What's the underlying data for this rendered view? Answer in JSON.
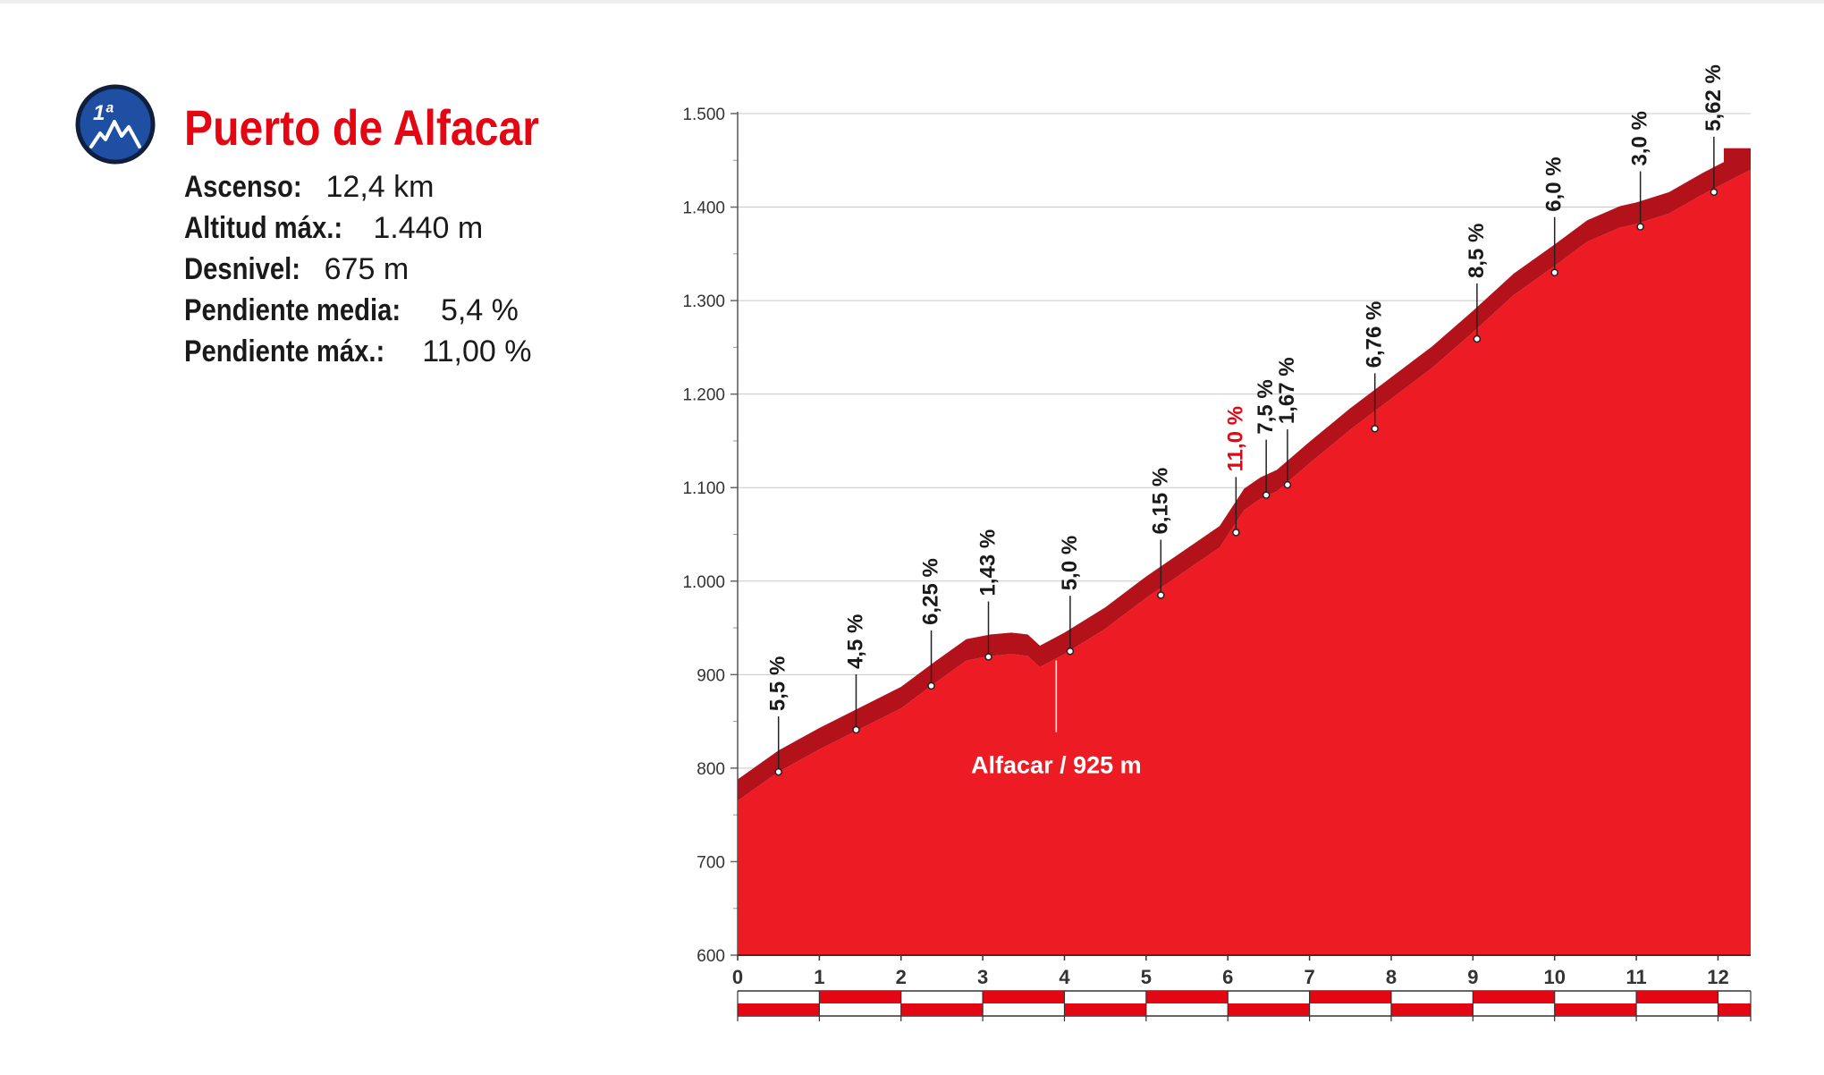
{
  "header": {
    "category_badge": "1ª",
    "badge_icon": "mountain-icon",
    "title": "Puerto de Alfacar"
  },
  "stats": [
    {
      "label": "Ascenso:",
      "value": "12,4 km"
    },
    {
      "label": "Altitud máx.:",
      "value": "1.440 m"
    },
    {
      "label": "Desnivel:",
      "value": "675 m"
    },
    {
      "label": "Pendiente media:",
      "value": "5,4 %"
    },
    {
      "label": "Pendiente máx.:",
      "value": "11,00 %"
    }
  ],
  "colors": {
    "accent": "#e30613",
    "profile_fill": "#ed1c24",
    "profile_top": "#b3121b",
    "badge_bg": "#1f4fa3",
    "text": "#1a1a1a"
  },
  "chart_data": {
    "type": "area",
    "x_unit": "km",
    "y_unit": "m",
    "xlim": [
      0,
      12.4
    ],
    "ylim": [
      600,
      1500
    ],
    "x_ticks": [
      0,
      1,
      2,
      3,
      4,
      5,
      6,
      7,
      8,
      9,
      10,
      11,
      12
    ],
    "y_ticks": [
      600,
      700,
      800,
      900,
      1000,
      1100,
      1200,
      1300,
      1400,
      1500
    ],
    "y_tick_labels": [
      "600",
      "700",
      "800",
      "900",
      "1.000",
      "1.100",
      "1.200",
      "1.300",
      "1.400",
      "1.500"
    ],
    "grid": true,
    "profile": [
      [
        0,
        765
      ],
      [
        0.5,
        796
      ],
      [
        1,
        820
      ],
      [
        1.5,
        842
      ],
      [
        2,
        864
      ],
      [
        2.4,
        890
      ],
      [
        2.8,
        915
      ],
      [
        3.1,
        920
      ],
      [
        3.35,
        922
      ],
      [
        3.55,
        920
      ],
      [
        3.7,
        908
      ],
      [
        4,
        922
      ],
      [
        4.5,
        949
      ],
      [
        5,
        982
      ],
      [
        5.5,
        1012
      ],
      [
        5.9,
        1036
      ],
      [
        6.05,
        1056
      ],
      [
        6.2,
        1076
      ],
      [
        6.4,
        1088
      ],
      [
        6.6,
        1096
      ],
      [
        7,
        1126
      ],
      [
        7.5,
        1162
      ],
      [
        8,
        1195
      ],
      [
        8.5,
        1228
      ],
      [
        9,
        1266
      ],
      [
        9.5,
        1306
      ],
      [
        10,
        1337
      ],
      [
        10.4,
        1363
      ],
      [
        10.8,
        1378
      ],
      [
        11,
        1382
      ],
      [
        11.4,
        1393
      ],
      [
        11.8,
        1413
      ],
      [
        12,
        1422
      ],
      [
        12.4,
        1440
      ]
    ],
    "slope_labels": [
      {
        "x": 0.5,
        "y": 796,
        "label": "5,5 %",
        "highlight": false
      },
      {
        "x": 1.45,
        "y": 841,
        "label": "4,5 %",
        "highlight": false
      },
      {
        "x": 2.37,
        "y": 888,
        "label": "6,25 %",
        "highlight": false
      },
      {
        "x": 3.07,
        "y": 919,
        "label": "1,43 %",
        "highlight": false
      },
      {
        "x": 4.07,
        "y": 925,
        "label": "5,0 %",
        "highlight": false
      },
      {
        "x": 5.18,
        "y": 985,
        "label": "6,15 %",
        "highlight": false
      },
      {
        "x": 6.1,
        "y": 1052,
        "label": "11,0 %",
        "highlight": true
      },
      {
        "x": 6.47,
        "y": 1092,
        "label": "7,5 %",
        "highlight": false
      },
      {
        "x": 6.73,
        "y": 1103,
        "label": "1,67 %",
        "highlight": false
      },
      {
        "x": 7.8,
        "y": 1163,
        "label": "6,76 %",
        "highlight": false
      },
      {
        "x": 9.05,
        "y": 1259,
        "label": "8,5 %",
        "highlight": false
      },
      {
        "x": 10.0,
        "y": 1330,
        "label": "6,0 %",
        "highlight": false
      },
      {
        "x": 11.05,
        "y": 1379,
        "label": "3,0 %",
        "highlight": false
      },
      {
        "x": 11.95,
        "y": 1416,
        "label": "5,62 %",
        "highlight": false
      }
    ],
    "annotations": [
      {
        "x": 3.9,
        "y": 915,
        "label": "Alfacar / 925 m"
      }
    ]
  }
}
